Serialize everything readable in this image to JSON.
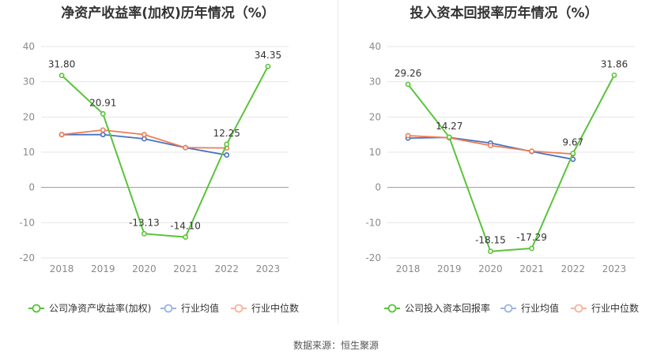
{
  "chart_data": [
    {
      "type": "line",
      "title": "净资产收益率(加权)历年情况（%）",
      "categories": [
        "2018",
        "2019",
        "2020",
        "2021",
        "2022",
        "2023"
      ],
      "ylim": [
        -20,
        40
      ],
      "yticks": [
        -20,
        -10,
        0,
        10,
        20,
        30,
        40
      ],
      "grid": true,
      "legend_position": "bottom",
      "series": [
        {
          "name": "公司净资产收益率(加权)",
          "color": "#5ac33b",
          "values": [
            31.8,
            20.91,
            -13.13,
            -14.1,
            12.25,
            34.35
          ],
          "labels": [
            "31.80",
            "20.91",
            "-13.13",
            "-14.10",
            "12.25",
            "34.35"
          ]
        },
        {
          "name": "行业均值",
          "color": "#4572c4",
          "values": [
            15.0,
            15.0,
            13.8,
            11.3,
            9.2,
            null
          ]
        },
        {
          "name": "行业中位数",
          "color": "#ed7d55",
          "values": [
            15.0,
            16.3,
            15.0,
            11.3,
            11.2,
            null
          ]
        }
      ]
    },
    {
      "type": "line",
      "title": "投入资本回报率历年情况（%）",
      "categories": [
        "2018",
        "2019",
        "2020",
        "2021",
        "2022",
        "2023"
      ],
      "ylim": [
        -20,
        40
      ],
      "yticks": [
        -20,
        -10,
        0,
        10,
        20,
        30,
        40
      ],
      "grid": true,
      "legend_position": "bottom",
      "series": [
        {
          "name": "公司投入资本回报率",
          "color": "#5ac33b",
          "values": [
            29.26,
            14.27,
            -18.15,
            -17.29,
            9.67,
            31.86
          ],
          "labels": [
            "29.26",
            "14.27",
            "-18.15",
            "-17.29",
            "9.67",
            "31.86"
          ]
        },
        {
          "name": "行业均值",
          "color": "#4572c4",
          "values": [
            14.0,
            14.2,
            12.6,
            10.2,
            8.0,
            null
          ]
        },
        {
          "name": "行业中位数",
          "color": "#ed7d55",
          "values": [
            14.7,
            14.1,
            11.9,
            10.3,
            9.5,
            null
          ]
        }
      ]
    }
  ],
  "source": "数据来源：恒生聚源"
}
